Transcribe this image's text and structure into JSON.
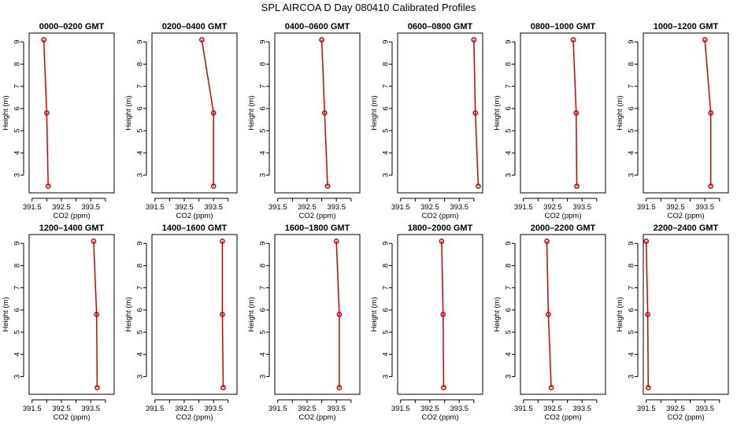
{
  "chart_data": {
    "type": "line",
    "title": "SPL AIRCOA D  Day 080410  Calibrated Profiles",
    "xlabel": "CO2 (ppm)",
    "ylabel": "Height (m)",
    "xlim": [
      391.4,
      394.3
    ],
    "ylim": [
      2.2,
      9.4
    ],
    "xticks": [
      391.5,
      392.5,
      393.5
    ],
    "xticks_minor": [
      392.0,
      393.0,
      394.0
    ],
    "yticks": [
      3,
      4,
      5,
      6,
      7,
      8,
      9
    ],
    "heights": [
      9.1,
      5.8,
      2.5
    ],
    "colors": {
      "series": "#d40000",
      "axis": "#000000"
    },
    "grid": false,
    "panels": [
      {
        "title": "0000–0200 GMT",
        "values": [
          391.9,
          392.0,
          392.05
        ]
      },
      {
        "title": "0200–0400 GMT",
        "values": [
          393.1,
          393.5,
          393.5
        ]
      },
      {
        "title": "0400–0600 GMT",
        "values": [
          393.0,
          393.1,
          393.2
        ]
      },
      {
        "title": "0600–0800 GMT",
        "values": [
          394.0,
          394.05,
          394.15
        ]
      },
      {
        "title": "0800–1000 GMT",
        "values": [
          393.2,
          393.3,
          393.32
        ]
      },
      {
        "title": "1000–1200 GMT",
        "values": [
          393.5,
          393.7,
          393.7
        ]
      },
      {
        "title": "1200–1400 GMT",
        "values": [
          393.6,
          393.7,
          393.72
        ]
      },
      {
        "title": "1400–1600 GMT",
        "values": [
          393.8,
          393.8,
          393.83
        ]
      },
      {
        "title": "1600–1800 GMT",
        "values": [
          393.5,
          393.6,
          393.6
        ]
      },
      {
        "title": "1800–2000 GMT",
        "values": [
          392.9,
          392.95,
          392.97
        ]
      },
      {
        "title": "2000–2200 GMT",
        "values": [
          392.3,
          392.35,
          392.45
        ]
      },
      {
        "title": "2200–2400 GMT",
        "values": [
          391.5,
          391.55,
          391.57
        ]
      }
    ]
  }
}
